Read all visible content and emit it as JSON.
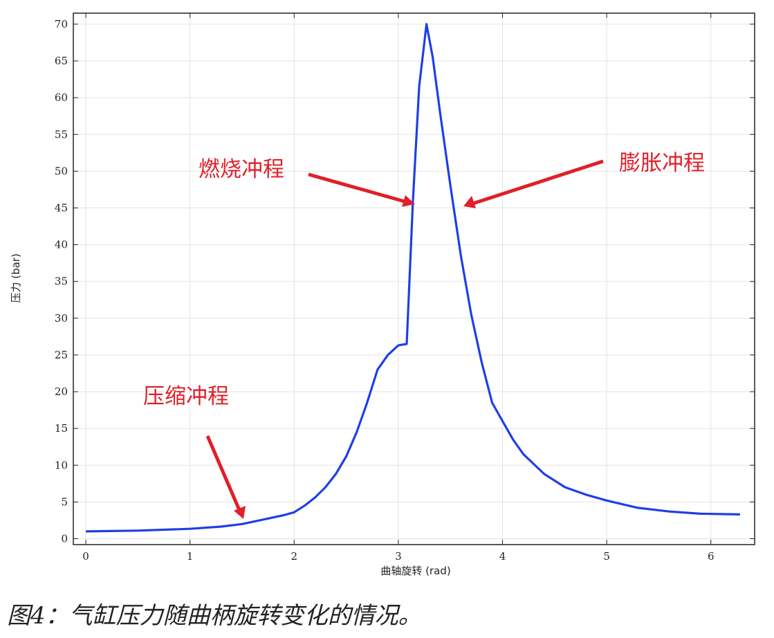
{
  "chart_data": {
    "type": "line",
    "xlabel": "曲轴旋转 (rad)",
    "ylabel": "压力 (bar)",
    "xlim": [
      -0.12,
      6.42
    ],
    "ylim": [
      -0.8,
      71.5
    ],
    "xticks": [
      0,
      1,
      2,
      3,
      4,
      5,
      6
    ],
    "yticks": [
      0,
      5,
      10,
      15,
      20,
      25,
      30,
      35,
      40,
      45,
      50,
      55,
      60,
      65,
      70
    ],
    "grid": true,
    "series": [
      {
        "color": "#1f3ee6",
        "x": [
          0,
          0.5,
          1.0,
          1.3,
          1.5,
          1.7,
          1.9,
          2.0,
          2.1,
          2.2,
          2.3,
          2.4,
          2.5,
          2.6,
          2.7,
          2.8,
          2.9,
          3.0,
          3.08,
          3.14,
          3.2,
          3.27,
          3.33,
          3.4,
          3.5,
          3.6,
          3.7,
          3.8,
          3.9,
          4.0,
          4.1,
          4.2,
          4.4,
          4.6,
          4.8,
          5.0,
          5.3,
          5.6,
          5.9,
          6.28
        ],
        "y": [
          1.0,
          1.1,
          1.35,
          1.65,
          2.0,
          2.6,
          3.2,
          3.6,
          4.5,
          5.6,
          7.0,
          8.8,
          11.2,
          14.5,
          18.5,
          23.0,
          25.0,
          26.3,
          26.5,
          46.0,
          61.5,
          70.0,
          65.5,
          58.0,
          48.0,
          38.5,
          30.5,
          24.0,
          18.5,
          16.0,
          13.5,
          11.5,
          8.8,
          7.0,
          6.0,
          5.2,
          4.2,
          3.7,
          3.4,
          3.3
        ]
      }
    ],
    "annotations": [
      {
        "text": "燃烧冲程"
      },
      {
        "text": "膨胀冲程"
      },
      {
        "text": "压缩冲程"
      }
    ]
  },
  "caption": "图4：气缸压力随曲柄旋转变化的情况。",
  "colors": {
    "line": "#1f3ee6",
    "annotation": "#e0202a",
    "grid": "#e3e3e3"
  }
}
